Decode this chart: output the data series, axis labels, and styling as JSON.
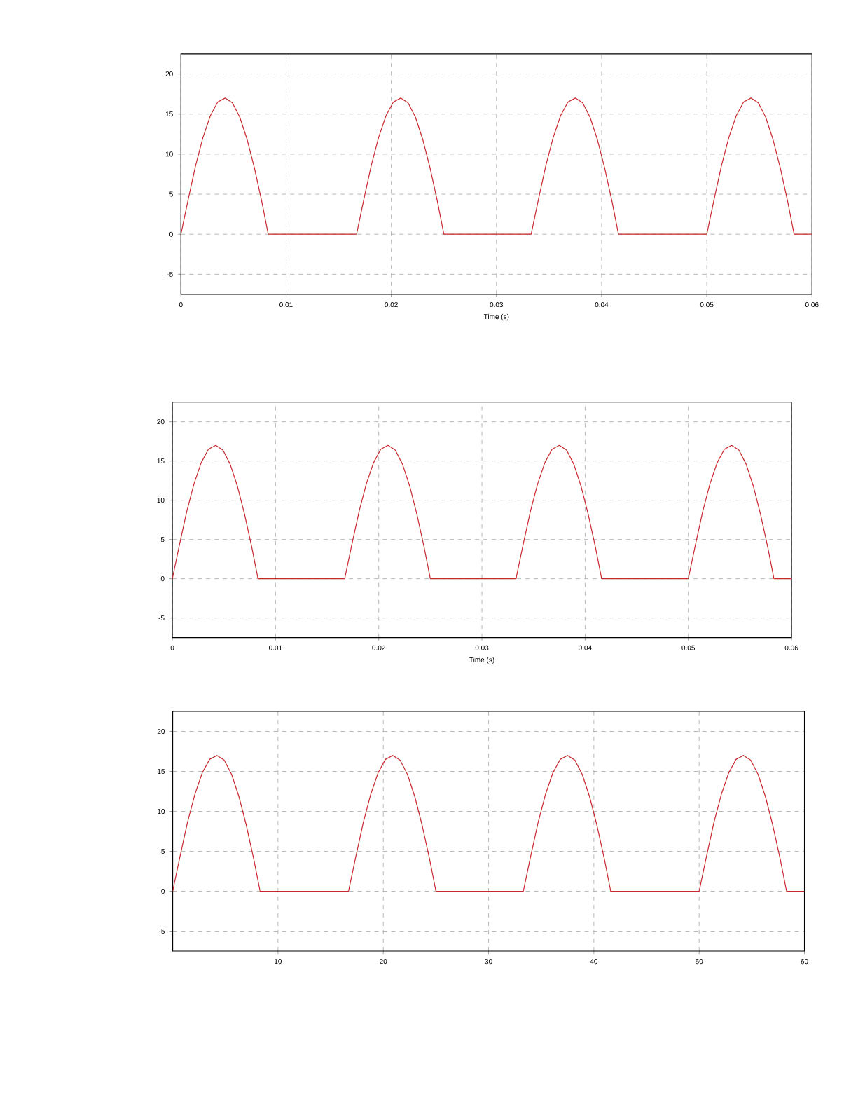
{
  "chart_data": [
    {
      "type": "line",
      "xlabel": "Time (s)",
      "color": "#c8282d",
      "grid": true,
      "x": [
        0,
        0.0007,
        0.0014,
        0.0021,
        0.0028,
        0.0035,
        0.0042,
        0.0049,
        0.0056,
        0.0063,
        0.007,
        0.0077,
        0.0083,
        0.0167,
        0.0174,
        0.0181,
        0.0188,
        0.0195,
        0.0202,
        0.0209,
        0.0216,
        0.0223,
        0.023,
        0.0237,
        0.0244,
        0.025,
        0.0333,
        0.034,
        0.0347,
        0.0354,
        0.0361,
        0.0368,
        0.0375,
        0.0382,
        0.0389,
        0.0396,
        0.0403,
        0.041,
        0.0416,
        0.05,
        0.0507,
        0.0514,
        0.0521,
        0.0528,
        0.0535,
        0.0542,
        0.0549,
        0.0556,
        0.0563,
        0.057,
        0.0577,
        0.0583,
        0.06
      ],
      "values": [
        0,
        4.4,
        8.6,
        12.1,
        14.8,
        16.5,
        17,
        16.4,
        14.6,
        11.8,
        8.2,
        4,
        0,
        0,
        4.4,
        8.6,
        12.1,
        14.8,
        16.5,
        17,
        16.4,
        14.6,
        11.8,
        8.2,
        4,
        0,
        0,
        4.4,
        8.6,
        12.1,
        14.8,
        16.5,
        17,
        16.4,
        14.6,
        11.8,
        8.2,
        4,
        0,
        0,
        4.4,
        8.6,
        12.1,
        14.8,
        16.5,
        17,
        16.4,
        14.6,
        11.8,
        8.2,
        4,
        0,
        0
      ],
      "xlim": [
        0,
        0.06
      ],
      "xticks": [
        0,
        0.01,
        0.02,
        0.03,
        0.04,
        0.05,
        0.06
      ],
      "ylim": [
        -7.5,
        22.5
      ],
      "yticks": [
        -5,
        0,
        5,
        10,
        15,
        20
      ]
    },
    {
      "type": "line",
      "xlabel": "Time (s)",
      "color": "#c8282d",
      "grid": true,
      "x": [
        0,
        0.0007,
        0.0014,
        0.0021,
        0.0028,
        0.0035,
        0.0042,
        0.0049,
        0.0056,
        0.0063,
        0.007,
        0.0077,
        0.0083,
        0.0167,
        0.0174,
        0.0181,
        0.0188,
        0.0195,
        0.0202,
        0.0209,
        0.0216,
        0.0223,
        0.023,
        0.0237,
        0.0244,
        0.025,
        0.0333,
        0.034,
        0.0347,
        0.0354,
        0.0361,
        0.0368,
        0.0375,
        0.0382,
        0.0389,
        0.0396,
        0.0403,
        0.041,
        0.0416,
        0.05,
        0.0507,
        0.0514,
        0.0521,
        0.0528,
        0.0535,
        0.0542,
        0.0549,
        0.0556,
        0.0563,
        0.057,
        0.0577,
        0.0583,
        0.06
      ],
      "values": [
        0,
        4.4,
        8.6,
        12.1,
        14.8,
        16.5,
        17,
        16.4,
        14.6,
        11.8,
        8.2,
        4,
        0,
        0,
        4.4,
        8.6,
        12.1,
        14.8,
        16.5,
        17,
        16.4,
        14.6,
        11.8,
        8.2,
        4,
        0,
        0,
        4.4,
        8.6,
        12.1,
        14.8,
        16.5,
        17,
        16.4,
        14.6,
        11.8,
        8.2,
        4,
        0,
        0,
        4.4,
        8.6,
        12.1,
        14.8,
        16.5,
        17,
        16.4,
        14.6,
        11.8,
        8.2,
        4,
        0,
        0
      ],
      "xlim": [
        0,
        0.06
      ],
      "xticks": [
        0,
        0.01,
        0.02,
        0.03,
        0.04,
        0.05,
        0.06
      ],
      "ylim": [
        -7.5,
        22.5
      ],
      "yticks": [
        -5,
        0,
        5,
        10,
        15,
        20
      ]
    },
    {
      "type": "line",
      "color": "#c8282d",
      "grid": true,
      "x": [
        0,
        0.7,
        1.4,
        2.1,
        2.8,
        3.5,
        4.2,
        4.9,
        5.6,
        6.3,
        7,
        7.7,
        8.3,
        16.7,
        17.4,
        18.1,
        18.8,
        19.5,
        20.2,
        20.9,
        21.6,
        22.3,
        23,
        23.7,
        24.4,
        25,
        33.3,
        34,
        34.7,
        35.4,
        36.1,
        36.8,
        37.5,
        38.2,
        38.9,
        39.6,
        40.3,
        41,
        41.6,
        50,
        50.7,
        51.4,
        52.1,
        52.8,
        53.5,
        54.2,
        54.9,
        55.6,
        56.3,
        57,
        57.7,
        58.3,
        60
      ],
      "values": [
        0,
        4.4,
        8.6,
        12.1,
        14.8,
        16.5,
        17,
        16.4,
        14.6,
        11.8,
        8.2,
        4,
        0,
        0,
        4.4,
        8.6,
        12.1,
        14.8,
        16.5,
        17,
        16.4,
        14.6,
        11.8,
        8.2,
        4,
        0,
        0,
        4.4,
        8.6,
        12.1,
        14.8,
        16.5,
        17,
        16.4,
        14.6,
        11.8,
        8.2,
        4,
        0,
        0,
        4.4,
        8.6,
        12.1,
        14.8,
        16.5,
        17,
        16.4,
        14.6,
        11.8,
        8.2,
        4,
        0,
        0
      ],
      "xlim": [
        0,
        60
      ],
      "xticks": [
        10,
        20,
        30,
        40,
        50,
        60
      ],
      "ylim": [
        -7.5,
        22.5
      ],
      "yticks": [
        -5,
        0,
        5,
        10,
        15,
        20
      ]
    }
  ]
}
